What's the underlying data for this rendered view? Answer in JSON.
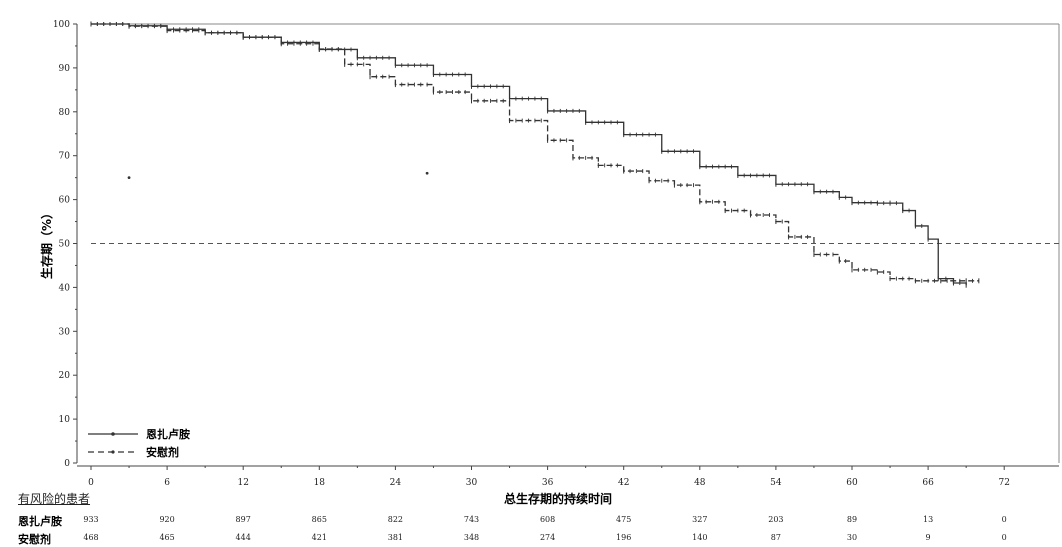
{
  "chart_data": {
    "type": "line",
    "xlabel": "总生存期的持续时间",
    "ylabel": "生存期（%）",
    "xlim": [
      0,
      75
    ],
    "ylim": [
      0,
      100
    ],
    "x_ticks": [
      0,
      6,
      12,
      18,
      24,
      30,
      36,
      42,
      48,
      54,
      60,
      66,
      72
    ],
    "y_ticks": [
      0,
      10,
      20,
      30,
      40,
      50,
      60,
      70,
      80,
      90,
      100
    ],
    "reference_line": 50,
    "legend_position": "bottom-left",
    "series": [
      {
        "name": "恩扎卢胺",
        "style": "solid",
        "color": "#333333",
        "x": [
          0,
          3,
          6,
          9,
          12,
          15,
          18,
          21,
          24,
          27,
          30,
          33,
          36,
          39,
          42,
          45,
          48,
          51,
          54,
          57,
          59,
          60,
          62,
          63,
          64,
          65,
          66,
          66.8,
          66.8,
          68,
          69
        ],
        "y": [
          100,
          99.6,
          98.8,
          98,
          97,
          95.8,
          94.2,
          92.3,
          90.6,
          88.5,
          85.8,
          83,
          80.2,
          77.6,
          74.8,
          71,
          67.5,
          65.5,
          63.5,
          61.8,
          60.5,
          59.3,
          59.2,
          59.2,
          57.5,
          54,
          51,
          50.5,
          42,
          41,
          40.5
        ]
      },
      {
        "name": "安慰剂",
        "style": "dashed",
        "color": "#333333",
        "x": [
          0,
          3,
          6,
          9,
          12,
          15,
          18,
          20,
          22,
          24,
          27,
          30,
          33,
          36,
          38,
          40,
          42,
          44,
          46,
          48,
          50,
          52,
          54,
          55,
          57,
          59,
          60,
          62,
          63,
          65,
          67,
          69,
          70
        ],
        "y": [
          100,
          99.5,
          98.5,
          98,
          97,
          95.5,
          94.3,
          90.8,
          88,
          86.2,
          84.5,
          82.5,
          78,
          73.5,
          69.5,
          67.8,
          66.5,
          64.3,
          63.3,
          59.5,
          57.5,
          56.5,
          55,
          51.5,
          47.5,
          46,
          44,
          43.5,
          42,
          41.5,
          41.5,
          41.5,
          41.5
        ]
      }
    ],
    "outlier_points": [
      {
        "x": 3,
        "y": 65
      },
      {
        "x": 26.5,
        "y": 66
      }
    ],
    "risk_table": {
      "title": "有风险的患者",
      "times": [
        0,
        6,
        12,
        18,
        24,
        30,
        36,
        42,
        48,
        54,
        60,
        66,
        72
      ],
      "rows": [
        {
          "label": "恩扎卢胺",
          "values": [
            "933",
            "920",
            "897",
            "865",
            "822",
            "743",
            "608",
            "475",
            "327",
            "203",
            "89",
            "13",
            "0"
          ]
        },
        {
          "label": "安慰剂",
          "values": [
            "468",
            "465",
            "444",
            "421",
            "381",
            "348",
            "274",
            "196",
            "140",
            "87",
            "30",
            "9",
            "0"
          ]
        }
      ]
    }
  }
}
